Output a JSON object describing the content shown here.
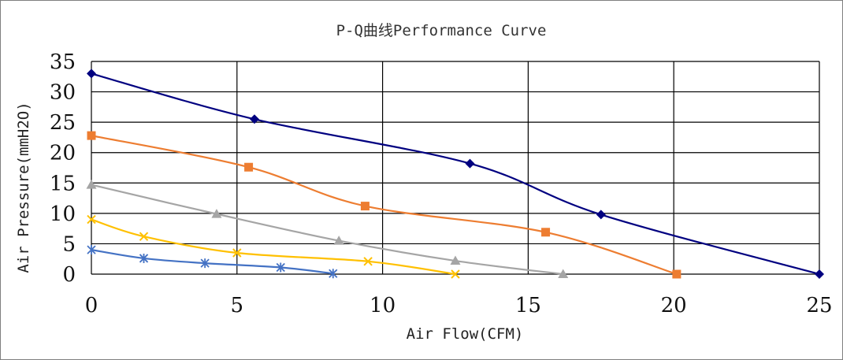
{
  "chart_data": {
    "type": "line",
    "title": "P-Q曲线Performance Curve",
    "xlabel": "Air Flow(CFM)",
    "ylabel": "Air Pressure(mmH2O)",
    "xlim": [
      0,
      25
    ],
    "ylim": [
      0,
      35
    ],
    "x_ticks": [
      "0",
      "5",
      "10",
      "15",
      "20",
      "25"
    ],
    "y_ticks": [
      "0",
      "5",
      "10",
      "15",
      "20",
      "25",
      "30",
      "35"
    ],
    "grid": true,
    "legend": "none",
    "series": [
      {
        "color": "#000080",
        "marker": "diamond",
        "points": [
          [
            0,
            33
          ],
          [
            5.6,
            25.5
          ],
          [
            13,
            18.2
          ],
          [
            17.5,
            9.8
          ],
          [
            25,
            0
          ]
        ]
      },
      {
        "color": "#ed7d31",
        "marker": "square",
        "points": [
          [
            0,
            22.8
          ],
          [
            5.4,
            17.6
          ],
          [
            9.4,
            11.2
          ],
          [
            15.6,
            6.9
          ],
          [
            20.1,
            0
          ]
        ]
      },
      {
        "color": "#a5a5a5",
        "marker": "triangle",
        "points": [
          [
            0,
            14.7
          ],
          [
            4.3,
            9.9
          ],
          [
            8.5,
            5.5
          ],
          [
            12.5,
            2.2
          ],
          [
            16.2,
            0
          ]
        ]
      },
      {
        "color": "#ffc000",
        "marker": "x",
        "points": [
          [
            0,
            9
          ],
          [
            1.8,
            6.2
          ],
          [
            5,
            3.5
          ],
          [
            9.5,
            2.1
          ],
          [
            12.5,
            0
          ]
        ]
      },
      {
        "color": "#4472c4",
        "marker": "star",
        "points": [
          [
            0,
            4
          ],
          [
            1.8,
            2.6
          ],
          [
            3.9,
            1.8
          ],
          [
            6.5,
            1.1
          ],
          [
            8.3,
            0.1
          ]
        ]
      }
    ]
  }
}
